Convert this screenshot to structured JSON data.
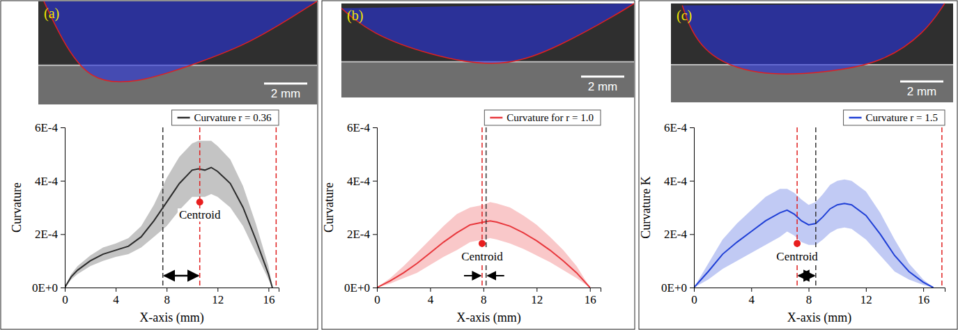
{
  "chart_data": [
    {
      "type": "line",
      "title": "(a)",
      "scale_bar_label": "2 mm",
      "x_label": "X-axis (mm)",
      "y_label": "Curvature",
      "xlim": [
        0,
        16.8
      ],
      "xticks": [
        0,
        4,
        8,
        12,
        16
      ],
      "ylim": [
        0,
        0.0006
      ],
      "yticks": [
        {
          "value": 0,
          "label": "0E+0"
        },
        {
          "value": 0.0002,
          "label": "2E-4"
        },
        {
          "value": 0.0004,
          "label": "4E-4"
        },
        {
          "value": 0.0006,
          "label": "6E-4"
        }
      ],
      "legend": "top right",
      "series": [
        {
          "name": "Curvature r = 0.36",
          "color": "#2b2b2b",
          "x": [
            0,
            0.5,
            1,
            2,
            3,
            4,
            5,
            6,
            7,
            8,
            9,
            10,
            10.5,
            11,
            11.5,
            12,
            13,
            14,
            15,
            16,
            16.3
          ],
          "values": [
            0,
            4e-05,
            6.5e-05,
            0.0001,
            0.000125,
            0.00014,
            0.000155,
            0.00019,
            0.00025,
            0.00032,
            0.00039,
            0.00044,
            0.000445,
            0.00044,
            0.00045,
            0.000435,
            0.00039,
            0.0003,
            0.00018,
            5e-05,
            0
          ],
          "upper": [
            0,
            5e-05,
            8e-05,
            0.00012,
            0.00015,
            0.000165,
            0.000185,
            0.00023,
            0.00031,
            0.00041,
            0.00049,
            0.00054,
            0.00055,
            0.00055,
            0.00055,
            0.00053,
            0.00048,
            0.00038,
            0.00024,
            8e-05,
            0
          ],
          "lower": [
            0,
            3e-05,
            5e-05,
            8e-05,
            0.0001,
            0.000115,
            0.000125,
            0.00015,
            0.00019,
            0.00023,
            0.00029,
            0.00034,
            0.00034,
            0.00034,
            0.00035,
            0.00034,
            0.0003,
            0.00023,
            0.00013,
            3e-05,
            0
          ]
        }
      ],
      "centroid": {
        "label": "Centroid",
        "x": 10.6,
        "y": 0.00032,
        "color": "#e81e1e"
      },
      "vlines": [
        {
          "x": 0,
          "color": "#e02020",
          "line_style": "dashed"
        },
        {
          "x": 7.7,
          "color": "#333333",
          "line_style": "dashed"
        },
        {
          "x": 10.6,
          "color": "#e02020",
          "line_style": "dashed"
        },
        {
          "x": 16.6,
          "color": "#e02020",
          "line_style": "dashed"
        }
      ]
    },
    {
      "type": "line",
      "title": "(b)",
      "scale_bar_label": "2 mm",
      "x_label": "X-axis (mm)",
      "y_label": "Curvature",
      "xlim": [
        0,
        16.8
      ],
      "xticks": [
        0,
        4,
        8,
        12,
        16
      ],
      "ylim": [
        0,
        0.0006
      ],
      "yticks": [
        {
          "value": 0,
          "label": "0E+0"
        },
        {
          "value": 0.0002,
          "label": "2E-4"
        },
        {
          "value": 0.0004,
          "label": "4E-4"
        },
        {
          "value": 0.0006,
          "label": "6E-4"
        }
      ],
      "legend": "top right",
      "series": [
        {
          "name": "Curvature for r = 1.0",
          "color": "#e8383d",
          "x": [
            0,
            1,
            2,
            3,
            4,
            5,
            6,
            7,
            8,
            8.5,
            9,
            10,
            11,
            12,
            13,
            14,
            15,
            16
          ],
          "values": [
            0,
            2.5e-05,
            5.5e-05,
            9e-05,
            0.00013,
            0.00017,
            0.000205,
            0.000235,
            0.000245,
            0.00025,
            0.000245,
            0.00023,
            0.000205,
            0.000175,
            0.00014,
            0.0001,
            5.5e-05,
            0
          ],
          "upper": [
            0,
            3.5e-05,
            8e-05,
            0.00013,
            0.00018,
            0.00023,
            0.000275,
            0.0003,
            0.00031,
            0.00032,
            0.000315,
            0.0003,
            0.00027,
            0.000235,
            0.00019,
            0.00014,
            8e-05,
            0
          ],
          "lower": [
            0,
            1.5e-05,
            3.5e-05,
            5.5e-05,
            8.5e-05,
            0.000115,
            0.00014,
            0.00017,
            0.00018,
            0.000185,
            0.00018,
            0.000165,
            0.000145,
            0.00012,
            9.5e-05,
            6.5e-05,
            3.5e-05,
            0
          ]
        }
      ],
      "centroid": {
        "label": "Centroid",
        "x": 7.9,
        "y": 0.000165,
        "color": "#e81e1e"
      },
      "vlines": [
        {
          "x": 0,
          "color": "#e02020",
          "line_style": "dashed"
        },
        {
          "x": 7.9,
          "color": "#e02020",
          "line_style": "dashed"
        },
        {
          "x": 8.2,
          "color": "#333333",
          "line_style": "dashed"
        }
      ]
    },
    {
      "type": "line",
      "title": "(c)",
      "scale_bar_label": "2 mm",
      "x_label": "X-axis (mm)",
      "y_label": "Curvature K",
      "xlim": [
        0,
        17.5
      ],
      "xticks": [
        0,
        4,
        8,
        12,
        16
      ],
      "ylim": [
        0,
        0.0006
      ],
      "yticks": [
        {
          "value": 0,
          "label": "0E+0"
        },
        {
          "value": 0.0002,
          "label": "2E-4"
        },
        {
          "value": 0.0004,
          "label": "4E-4"
        },
        {
          "value": 0.0006,
          "label": "6E-4"
        }
      ],
      "legend": "top right",
      "series": [
        {
          "name": "Curvature r = 1.5",
          "color": "#1f3fd6",
          "x": [
            0,
            1,
            2,
            3,
            4,
            5,
            6,
            6.5,
            7,
            7.5,
            8,
            8.5,
            9,
            9.5,
            10,
            10.5,
            11,
            12,
            13,
            14,
            15,
            16,
            16.7
          ],
          "values": [
            0,
            6e-05,
            0.000125,
            0.00017,
            0.00021,
            0.00025,
            0.00028,
            0.00029,
            0.000275,
            0.00025,
            0.000235,
            0.00024,
            0.000265,
            0.000295,
            0.00031,
            0.000315,
            0.00031,
            0.00027,
            0.0002,
            0.00012,
            6e-05,
            2e-05,
            0
          ],
          "upper": [
            0,
            9e-05,
            0.00018,
            0.00024,
            0.00029,
            0.00034,
            0.00037,
            0.00037,
            0.000355,
            0.00033,
            0.00031,
            0.00032,
            0.00035,
            0.000385,
            0.0004,
            0.000405,
            0.0004,
            0.00036,
            0.00028,
            0.00018,
            9e-05,
            3e-05,
            0
          ],
          "lower": [
            0,
            3e-05,
            7e-05,
            0.0001,
            0.00013,
            0.00016,
            0.00019,
            0.00021,
            0.000195,
            0.00017,
            0.00016,
            0.00016,
            0.00018,
            0.000205,
            0.00022,
            0.000225,
            0.00022,
            0.00018,
            0.00012,
            6e-05,
            3e-05,
            1e-05,
            0
          ]
        }
      ],
      "centroid": {
        "label": "Centroid",
        "x": 7.2,
        "y": 0.000165,
        "color": "#e81e1e"
      },
      "vlines": [
        {
          "x": 0,
          "color": "#e02020",
          "line_style": "dashed"
        },
        {
          "x": 7.2,
          "color": "#e02020",
          "line_style": "dashed"
        },
        {
          "x": 8.5,
          "color": "#333333",
          "line_style": "dashed"
        },
        {
          "x": 17.3,
          "color": "#e02020",
          "line_style": "dashed"
        }
      ]
    }
  ]
}
